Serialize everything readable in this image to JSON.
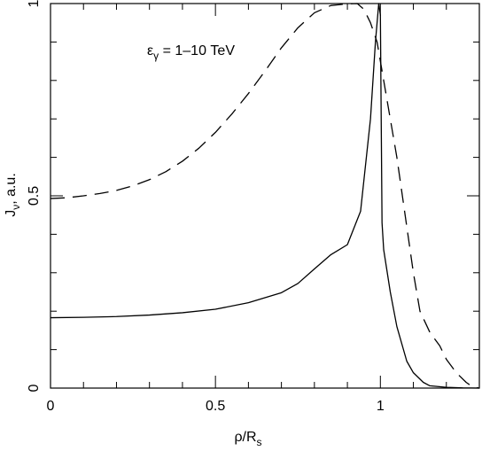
{
  "chart_data": {
    "type": "line",
    "xlabel_main": "ρ/R",
    "xlabel_sub": "s",
    "ylabel_main": "J",
    "ylabel_sub": "ν",
    "ylabel_tail": ", a.u.",
    "annotation": {
      "symbol": "ε",
      "sub": "γ",
      "text": " = 1–10 TeV"
    },
    "xlim": [
      0,
      1.3
    ],
    "ylim": [
      0,
      1.0
    ],
    "xticks_major": [
      0,
      0.5,
      1
    ],
    "xtick_labels": [
      "0",
      "0.5",
      "1"
    ],
    "yticks_major": [
      0,
      0.5,
      1
    ],
    "ytick_labels": [
      "0",
      "0.5",
      "1"
    ],
    "series": [
      {
        "style": "solid",
        "x": [
          0,
          0.1,
          0.2,
          0.3,
          0.4,
          0.5,
          0.6,
          0.7,
          0.75,
          0.8,
          0.85,
          0.9,
          0.94,
          0.97,
          0.985,
          0.995,
          1.0,
          1.005,
          1.01,
          1.03,
          1.05,
          1.08,
          1.1,
          1.13,
          1.15,
          1.2,
          1.25,
          1.3
        ],
        "y": [
          0.183,
          0.184,
          0.186,
          0.19,
          0.196,
          0.205,
          0.222,
          0.248,
          0.272,
          0.31,
          0.347,
          0.373,
          0.46,
          0.7,
          0.9,
          1.0,
          0.97,
          0.43,
          0.36,
          0.25,
          0.16,
          0.07,
          0.04,
          0.015,
          0.006,
          0.002,
          0.0005,
          0.0
        ]
      },
      {
        "style": "dashed",
        "x": [
          0,
          0.05,
          0.1,
          0.15,
          0.2,
          0.25,
          0.3,
          0.35,
          0.4,
          0.45,
          0.5,
          0.55,
          0.6,
          0.65,
          0.7,
          0.75,
          0.8,
          0.85,
          0.9,
          0.93,
          0.95,
          0.97,
          0.99,
          1.0,
          1.02,
          1.05,
          1.08,
          1.1,
          1.12,
          1.15,
          1.18,
          1.2,
          1.23,
          1.26,
          1.28,
          1.3
        ],
        "y": [
          0.493,
          0.495,
          0.5,
          0.506,
          0.514,
          0.526,
          0.542,
          0.563,
          0.59,
          0.624,
          0.665,
          0.713,
          0.766,
          0.824,
          0.885,
          0.937,
          0.976,
          0.995,
          0.999,
          1.0,
          0.985,
          0.95,
          0.9,
          0.85,
          0.75,
          0.6,
          0.42,
          0.3,
          0.2,
          0.145,
          0.11,
          0.075,
          0.04,
          0.015,
          0.003,
          0.0
        ]
      }
    ]
  }
}
